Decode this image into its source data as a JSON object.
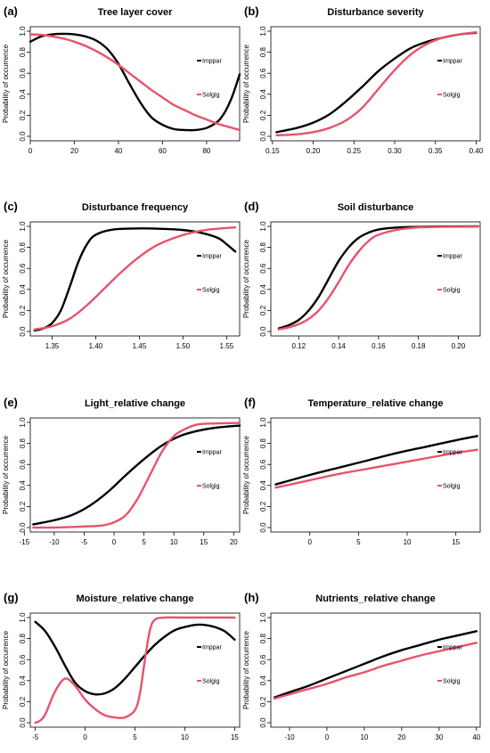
{
  "colors": {
    "Imppar": "#000000",
    "Solgig": "#e8536b"
  },
  "chart_data": [
    {
      "letter": "(a)",
      "title": "Tree layer cover",
      "type": "line",
      "ylabel": "Probability of occurrence",
      "xlim": [
        0,
        95
      ],
      "ylim": [
        0,
        1
      ],
      "xticks": [
        0,
        20,
        40,
        60,
        80
      ],
      "xtick_labels": [
        "0",
        "20",
        "40",
        "60",
        "80"
      ],
      "yticks": [
        0,
        0.2,
        0.4,
        0.6,
        0.8,
        1
      ],
      "ytick_labels": [
        "0.0",
        "0.2",
        "0.4",
        "0.6",
        "0.8",
        "1.0"
      ],
      "series": [
        {
          "name": "Imppar",
          "x": [
            0,
            5,
            10,
            15,
            20,
            25,
            30,
            35,
            40,
            45,
            50,
            55,
            60,
            65,
            70,
            75,
            80,
            85,
            88,
            90,
            92,
            95
          ],
          "values": [
            0.9,
            0.95,
            0.97,
            0.975,
            0.97,
            0.95,
            0.91,
            0.83,
            0.69,
            0.5,
            0.32,
            0.18,
            0.11,
            0.07,
            0.06,
            0.06,
            0.08,
            0.14,
            0.22,
            0.3,
            0.4,
            0.59
          ]
        },
        {
          "name": "Solgig",
          "x": [
            0,
            5,
            10,
            15,
            20,
            25,
            30,
            35,
            40,
            45,
            50,
            55,
            60,
            65,
            70,
            75,
            80,
            85,
            90,
            95
          ],
          "values": [
            0.97,
            0.965,
            0.95,
            0.93,
            0.9,
            0.86,
            0.81,
            0.75,
            0.68,
            0.6,
            0.52,
            0.44,
            0.37,
            0.3,
            0.25,
            0.2,
            0.16,
            0.12,
            0.09,
            0.06
          ]
        }
      ]
    },
    {
      "letter": "(b)",
      "title": "Disturbance severity",
      "type": "line",
      "ylabel": "Probability of occurrence",
      "xlim": [
        0.148,
        0.405
      ],
      "ylim": [
        0,
        1
      ],
      "xticks": [
        0.15,
        0.2,
        0.25,
        0.3,
        0.35,
        0.4
      ],
      "xtick_labels": [
        "0.15",
        "0.20",
        "0.25",
        "0.30",
        "0.35",
        "0.40"
      ],
      "yticks": [
        0,
        0.2,
        0.4,
        0.6,
        0.8,
        1
      ],
      "ytick_labels": [
        "0.0",
        "0.2",
        "0.4",
        "0.6",
        "0.8",
        "1.0"
      ],
      "series": [
        {
          "name": "Imppar",
          "x": [
            0.155,
            0.18,
            0.2,
            0.22,
            0.24,
            0.26,
            0.28,
            0.3,
            0.32,
            0.34,
            0.36,
            0.38,
            0.4
          ],
          "values": [
            0.04,
            0.08,
            0.13,
            0.21,
            0.33,
            0.47,
            0.62,
            0.74,
            0.84,
            0.9,
            0.94,
            0.97,
            0.985
          ]
        },
        {
          "name": "Solgig",
          "x": [
            0.155,
            0.18,
            0.2,
            0.22,
            0.24,
            0.26,
            0.28,
            0.3,
            0.32,
            0.34,
            0.36,
            0.38,
            0.4
          ],
          "values": [
            0.01,
            0.02,
            0.04,
            0.08,
            0.15,
            0.27,
            0.45,
            0.63,
            0.78,
            0.88,
            0.94,
            0.97,
            0.99
          ]
        }
      ],
      "legend_offset": 2
    },
    {
      "letter": "(c)",
      "title": "Disturbance frequency",
      "type": "line",
      "ylabel": "Probability of occurrence",
      "xlim": [
        1.325,
        1.565
      ],
      "ylim": [
        0,
        1
      ],
      "xticks": [
        1.35,
        1.4,
        1.45,
        1.5,
        1.55
      ],
      "xtick_labels": [
        "1.35",
        "1.40",
        "1.45",
        "1.50",
        "1.55"
      ],
      "yticks": [
        0,
        0.2,
        0.4,
        0.6,
        0.8,
        1
      ],
      "ytick_labels": [
        "0.0",
        "0.2",
        "0.4",
        "0.6",
        "0.8",
        "1.0"
      ],
      "series": [
        {
          "name": "Imppar",
          "x": [
            1.33,
            1.34,
            1.35,
            1.36,
            1.37,
            1.38,
            1.39,
            1.4,
            1.42,
            1.45,
            1.48,
            1.5,
            1.52,
            1.54,
            1.55,
            1.56
          ],
          "values": [
            0.01,
            0.03,
            0.08,
            0.2,
            0.42,
            0.66,
            0.83,
            0.92,
            0.97,
            0.98,
            0.975,
            0.965,
            0.94,
            0.89,
            0.83,
            0.76
          ]
        },
        {
          "name": "Solgig",
          "x": [
            1.33,
            1.35,
            1.37,
            1.39,
            1.41,
            1.43,
            1.45,
            1.47,
            1.49,
            1.51,
            1.53,
            1.56
          ],
          "values": [
            0.02,
            0.05,
            0.12,
            0.25,
            0.41,
            0.57,
            0.71,
            0.82,
            0.89,
            0.94,
            0.97,
            0.99
          ]
        }
      ]
    },
    {
      "letter": "(d)",
      "title": "Soil disturbance",
      "type": "line",
      "ylabel": "Probability of occurrence",
      "xlim": [
        0.106,
        0.211
      ],
      "ylim": [
        0,
        1
      ],
      "xticks": [
        0.12,
        0.14,
        0.16,
        0.18,
        0.2
      ],
      "xtick_labels": [
        "0.12",
        "0.14",
        "0.16",
        "0.18",
        "0.20"
      ],
      "yticks": [
        0,
        0.2,
        0.4,
        0.6,
        0.8,
        1
      ],
      "ytick_labels": [
        "0.0",
        "0.2",
        "0.4",
        "0.6",
        "0.8",
        "1.0"
      ],
      "series": [
        {
          "name": "Imppar",
          "x": [
            0.11,
            0.115,
            0.12,
            0.125,
            0.13,
            0.135,
            0.14,
            0.145,
            0.15,
            0.155,
            0.16,
            0.17,
            0.18,
            0.19,
            0.21
          ],
          "values": [
            0.03,
            0.06,
            0.11,
            0.2,
            0.33,
            0.5,
            0.67,
            0.8,
            0.89,
            0.94,
            0.97,
            0.99,
            0.995,
            0.998,
            1.0
          ]
        },
        {
          "name": "Solgig",
          "x": [
            0.11,
            0.115,
            0.12,
            0.125,
            0.13,
            0.135,
            0.14,
            0.145,
            0.15,
            0.155,
            0.16,
            0.17,
            0.18,
            0.19,
            0.21
          ],
          "values": [
            0.02,
            0.04,
            0.07,
            0.12,
            0.2,
            0.32,
            0.47,
            0.63,
            0.76,
            0.86,
            0.92,
            0.97,
            0.99,
            0.995,
            0.998
          ]
        }
      ]
    },
    {
      "letter": "(e)",
      "title": "Light_relative change",
      "type": "line",
      "ylabel": "Probability of occurrence",
      "xlim": [
        -14,
        21
      ],
      "ylim": [
        0,
        1
      ],
      "xticks": [
        -15,
        -10,
        -5,
        0,
        5,
        10,
        15,
        20
      ],
      "xtick_labels": [
        "-15",
        "-10",
        "-5",
        "0",
        "5",
        "10",
        "15",
        "20"
      ],
      "yticks": [
        0,
        0.2,
        0.4,
        0.6,
        0.8,
        1
      ],
      "ytick_labels": [
        "0.0",
        "0.2",
        "0.4",
        "0.6",
        "0.8",
        "1.0"
      ],
      "series": [
        {
          "name": "Imppar",
          "x": [
            -13.5,
            -10,
            -7,
            -4,
            -1,
            2,
            5,
            8,
            11,
            14,
            17,
            21
          ],
          "values": [
            0.03,
            0.07,
            0.12,
            0.21,
            0.34,
            0.5,
            0.65,
            0.78,
            0.87,
            0.92,
            0.95,
            0.97
          ]
        },
        {
          "name": "Solgig",
          "x": [
            -13.5,
            -10,
            -5,
            -2,
            0,
            2,
            4,
            6,
            8,
            10,
            12,
            14,
            17,
            21
          ],
          "values": [
            0.0,
            0.0,
            0.01,
            0.02,
            0.05,
            0.12,
            0.28,
            0.5,
            0.72,
            0.87,
            0.94,
            0.98,
            0.99,
            0.995
          ]
        }
      ]
    },
    {
      "letter": "(f)",
      "title": "Temperature_relative change",
      "type": "line",
      "ylabel": "Probability of occurrence",
      "xlim": [
        -4,
        17.5
      ],
      "ylim": [
        0,
        1
      ],
      "xticks": [
        0,
        5,
        10,
        15
      ],
      "xtick_labels": [
        "0",
        "5",
        "10",
        "15"
      ],
      "yticks": [
        0,
        0.2,
        0.4,
        0.6,
        0.8,
        1
      ],
      "ytick_labels": [
        "0.0",
        "0.2",
        "0.4",
        "0.6",
        "0.8",
        "1.0"
      ],
      "series": [
        {
          "name": "Imppar",
          "x": [
            -3.5,
            0,
            3,
            6,
            9,
            12,
            15,
            17.2
          ],
          "values": [
            0.41,
            0.5,
            0.57,
            0.64,
            0.71,
            0.77,
            0.83,
            0.87
          ]
        },
        {
          "name": "Solgig",
          "x": [
            -3.5,
            0,
            3,
            6,
            9,
            12,
            15,
            17.2
          ],
          "values": [
            0.38,
            0.45,
            0.51,
            0.56,
            0.61,
            0.66,
            0.71,
            0.74
          ]
        }
      ]
    },
    {
      "letter": "(g)",
      "title": "Moisture_relative change",
      "type": "line",
      "ylabel": "Probability of occurrence",
      "xlim": [
        -5.5,
        15.5
      ],
      "ylim": [
        0,
        1
      ],
      "xticks": [
        -5,
        0,
        5,
        10,
        15
      ],
      "xtick_labels": [
        "-5",
        "0",
        "5",
        "10",
        "15"
      ],
      "yticks": [
        0,
        0.2,
        0.4,
        0.6,
        0.8,
        1
      ],
      "ytick_labels": [
        "0.0",
        "0.2",
        "0.4",
        "0.6",
        "0.8",
        "1.0"
      ],
      "series": [
        {
          "name": "Imppar",
          "x": [
            -5,
            -4,
            -3,
            -2,
            -1,
            0,
            1,
            2,
            3,
            4,
            5,
            6,
            7,
            8,
            9,
            10,
            11,
            12,
            13,
            14,
            15
          ],
          "values": [
            0.96,
            0.87,
            0.72,
            0.54,
            0.38,
            0.3,
            0.27,
            0.28,
            0.33,
            0.42,
            0.53,
            0.64,
            0.74,
            0.82,
            0.88,
            0.91,
            0.93,
            0.93,
            0.91,
            0.87,
            0.79
          ]
        },
        {
          "name": "Solgig",
          "x": [
            -5,
            -4.5,
            -4,
            -3,
            -2,
            -1,
            0,
            1,
            2,
            3,
            4,
            5,
            5.5,
            6,
            6.5,
            7,
            8,
            10,
            15
          ],
          "values": [
            0.0,
            0.02,
            0.08,
            0.3,
            0.42,
            0.35,
            0.22,
            0.13,
            0.07,
            0.05,
            0.05,
            0.12,
            0.28,
            0.6,
            0.88,
            0.98,
            1.0,
            1.0,
            1.0
          ]
        }
      ]
    },
    {
      "letter": "(h)",
      "title": "Nutrients_relative change",
      "type": "line",
      "ylabel": "Probability of occurrence",
      "xlim": [
        -15,
        41
      ],
      "ylim": [
        0,
        1
      ],
      "xticks": [
        -10,
        0,
        10,
        20,
        30,
        40
      ],
      "xtick_labels": [
        "-10",
        "0",
        "10",
        "20",
        "30",
        "40"
      ],
      "yticks": [
        0,
        0.2,
        0.4,
        0.6,
        0.8,
        1
      ],
      "ytick_labels": [
        "0.0",
        "0.2",
        "0.4",
        "0.6",
        "0.8",
        "1.0"
      ],
      "series": [
        {
          "name": "Imppar",
          "x": [
            -14,
            -10,
            -5,
            0,
            5,
            10,
            15,
            20,
            25,
            30,
            35,
            40
          ],
          "values": [
            0.24,
            0.29,
            0.35,
            0.42,
            0.49,
            0.56,
            0.63,
            0.69,
            0.74,
            0.79,
            0.83,
            0.87
          ]
        },
        {
          "name": "Solgig",
          "x": [
            -14,
            -10,
            -5,
            0,
            5,
            10,
            15,
            20,
            25,
            30,
            35,
            40
          ],
          "values": [
            0.23,
            0.27,
            0.32,
            0.37,
            0.43,
            0.48,
            0.54,
            0.59,
            0.64,
            0.68,
            0.72,
            0.76
          ]
        }
      ]
    }
  ]
}
